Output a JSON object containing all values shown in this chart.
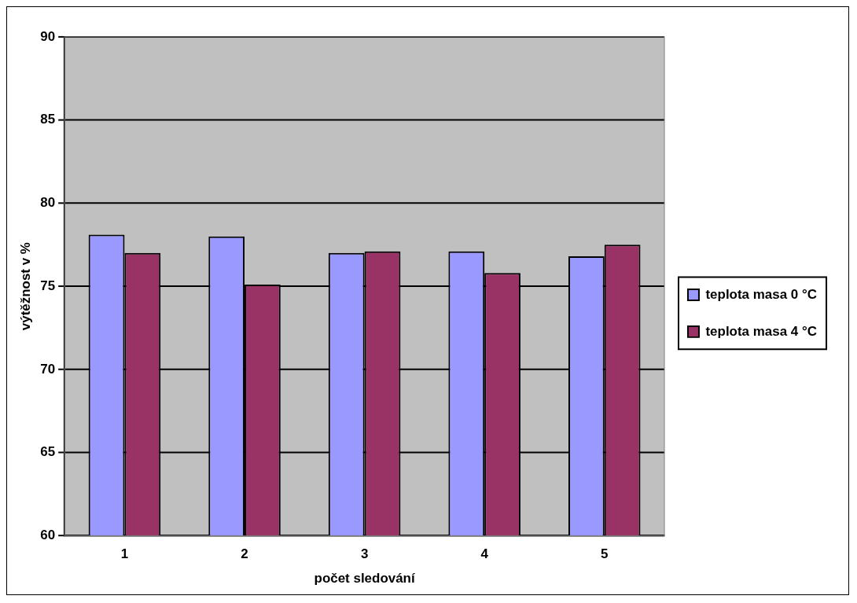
{
  "chart_data": {
    "type": "bar",
    "xlabel": "počet sledování",
    "ylabel": "výtěžnost v %",
    "categories": [
      "1",
      "2",
      "3",
      "4",
      "5"
    ],
    "series": [
      {
        "name": "teplota masa 0 °C",
        "color": "#9999ff",
        "values": [
          78.1,
          78.0,
          77.0,
          77.1,
          76.8
        ]
      },
      {
        "name": "teplota masa 4 °C",
        "color": "#993366",
        "values": [
          77.0,
          75.1,
          77.1,
          75.8,
          77.5
        ]
      }
    ],
    "ylim": [
      60,
      90
    ],
    "yticks": [
      60,
      65,
      70,
      75,
      80,
      85,
      90
    ],
    "grid": "y",
    "legend": "right"
  }
}
